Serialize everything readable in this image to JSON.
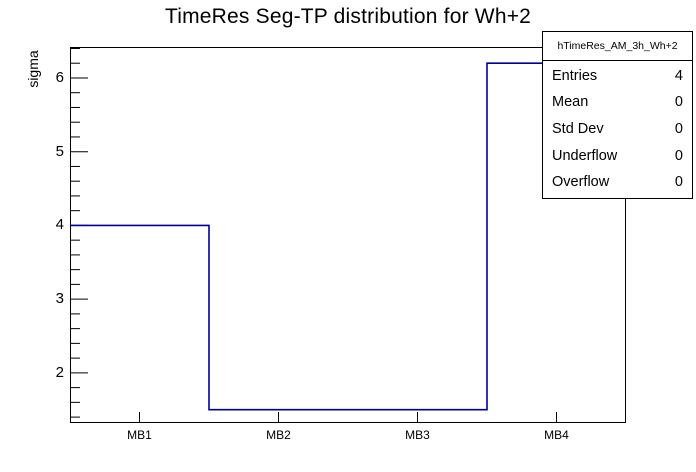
{
  "title": "TimeRes Seg-TP distribution for Wh+2",
  "y_axis_label": "sigma",
  "stats_box": {
    "header": "hTimeRes_AM_3h_Wh+2",
    "rows": [
      {
        "label": "Entries",
        "value": "4"
      },
      {
        "label": "Mean",
        "value": "0"
      },
      {
        "label": "Std Dev",
        "value": "0"
      },
      {
        "label": "Underflow",
        "value": "0"
      },
      {
        "label": "Overflow",
        "value": "0"
      }
    ]
  },
  "chart_data": {
    "type": "bar",
    "subtype": "step-histogram",
    "title": "TimeRes Seg-TP distribution for Wh+2",
    "categories": [
      "MB1",
      "MB2",
      "MB3",
      "MB4"
    ],
    "values": [
      4.0,
      1.5,
      1.5,
      6.2
    ],
    "xlabel": "",
    "ylabel": "sigma",
    "ylim": [
      1.32,
      6.42
    ],
    "y_major_ticks": [
      2,
      3,
      4,
      5,
      6
    ],
    "y_minor_step": 0.2,
    "grid": false,
    "legend": false,
    "line_color": "#000099",
    "axis_color": "#000000",
    "background_color": "#ffffff"
  }
}
